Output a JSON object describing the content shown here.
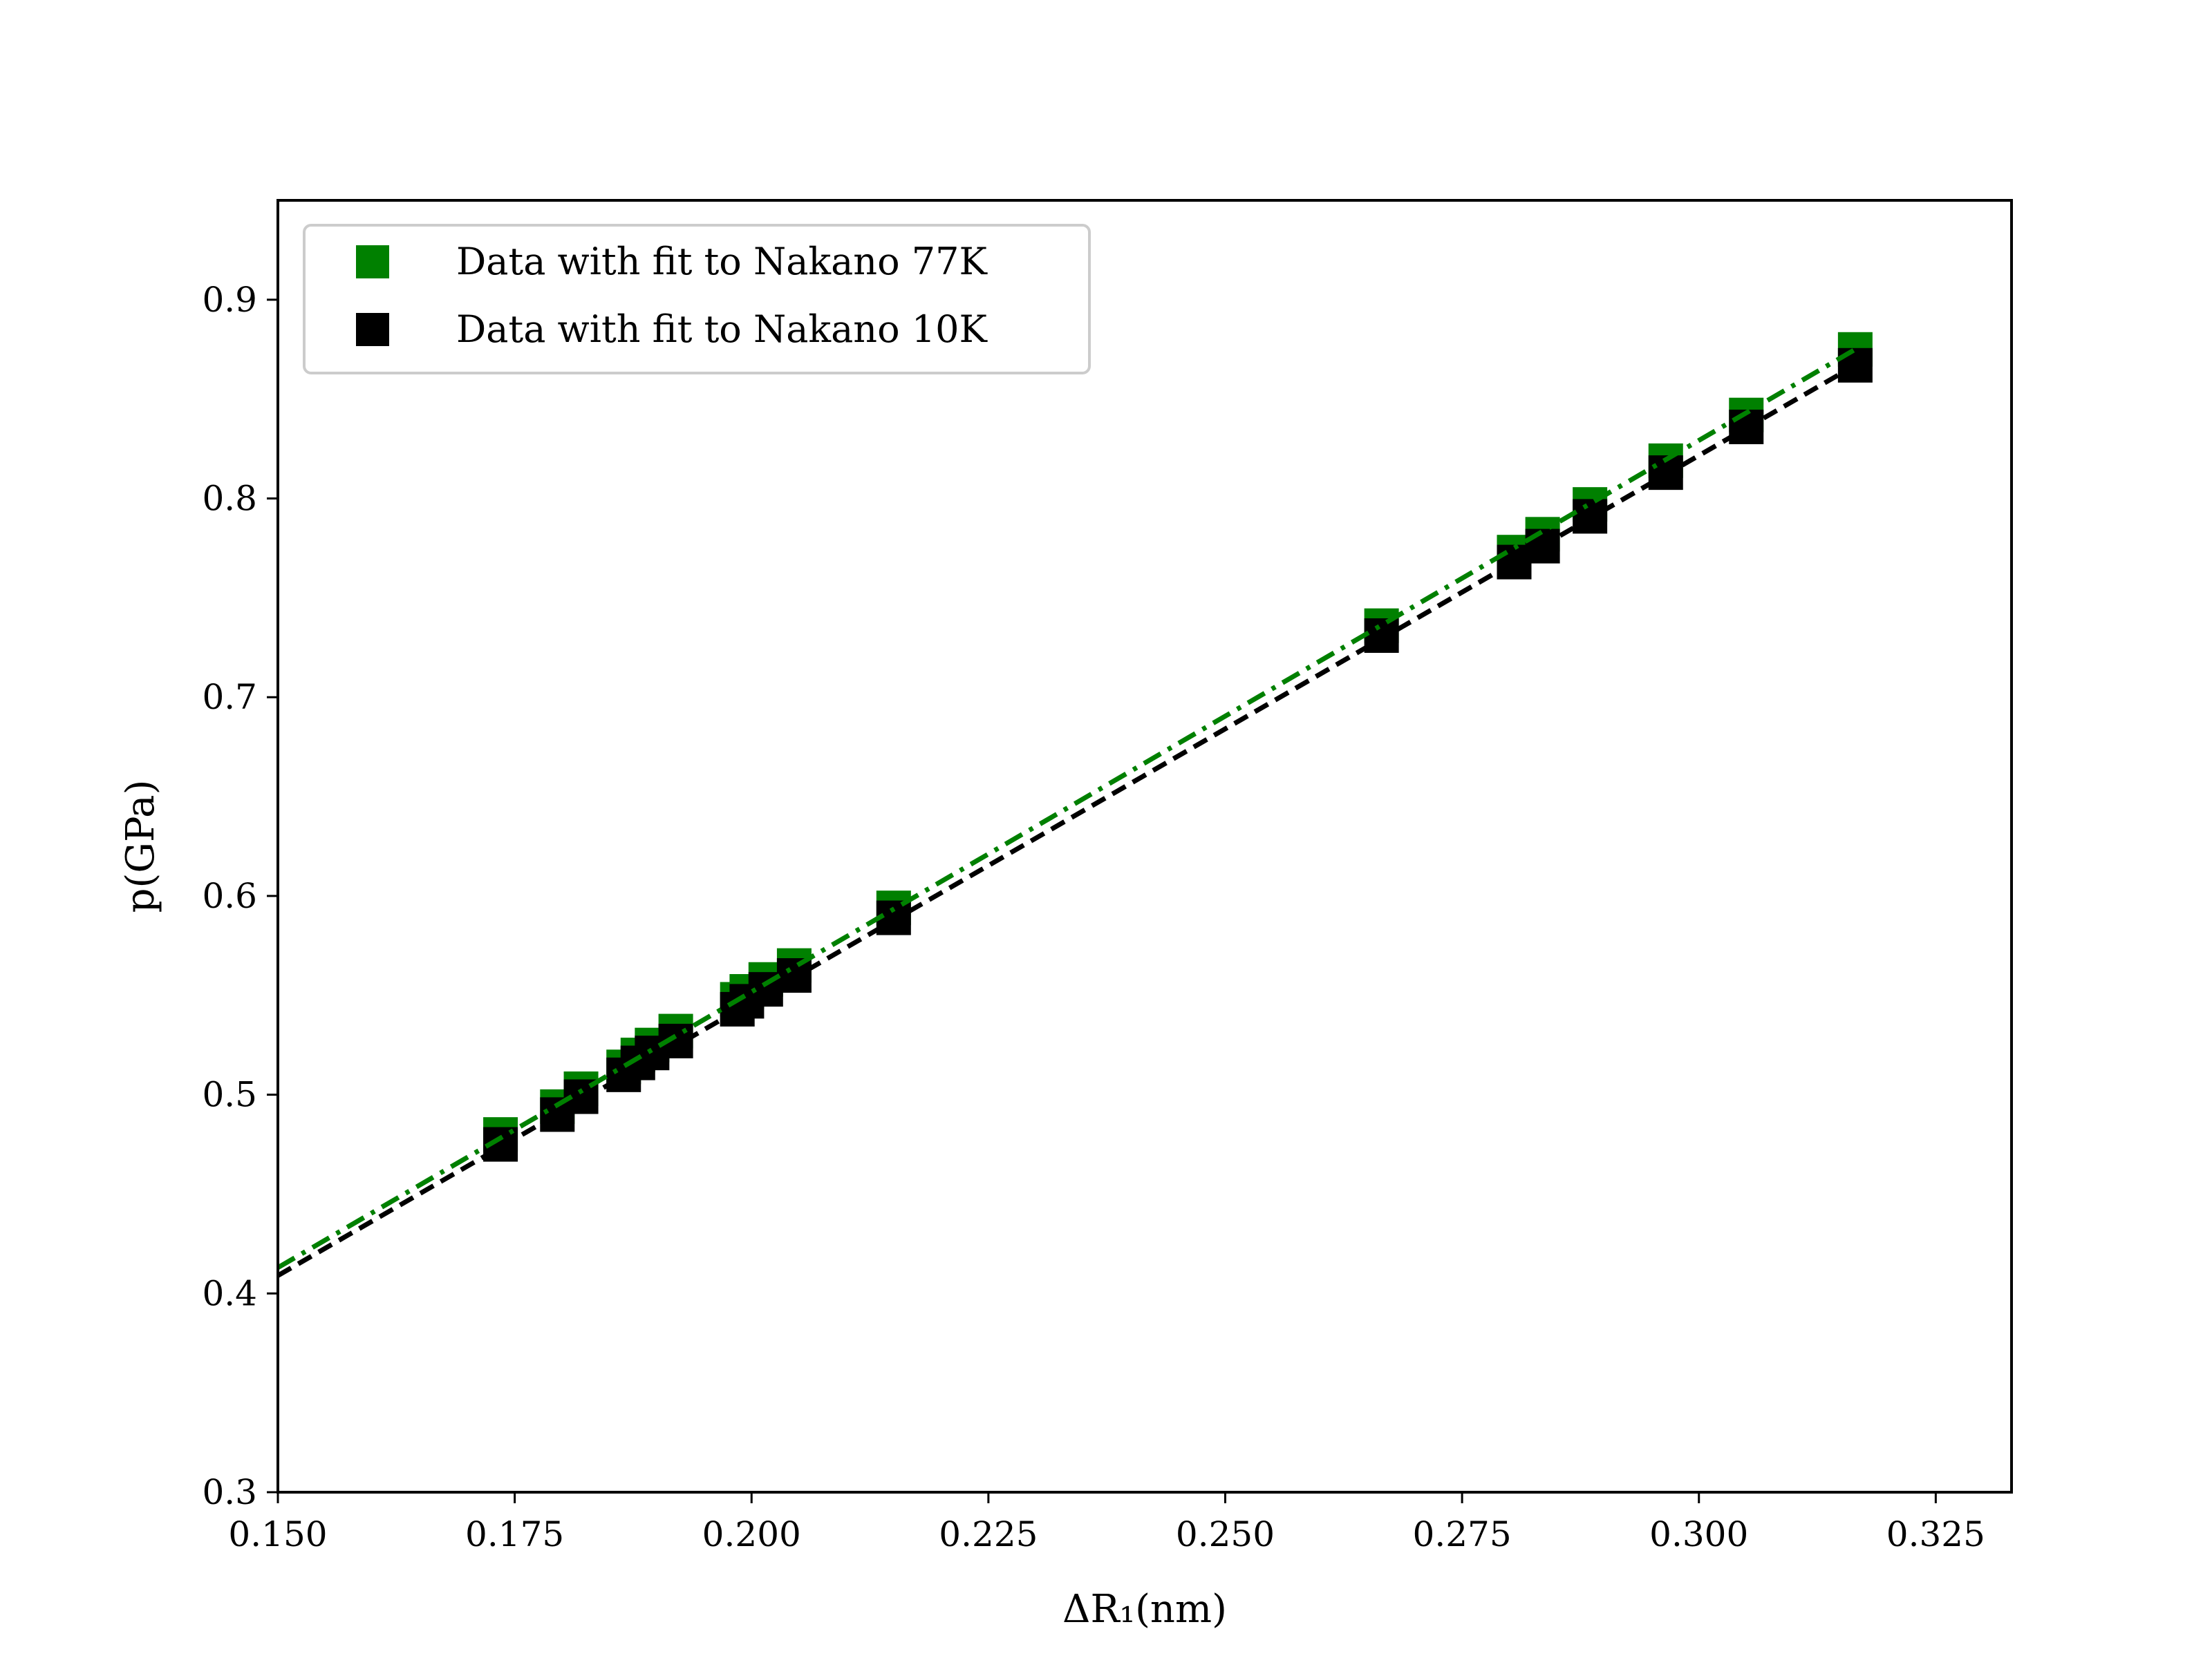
{
  "chart_data": {
    "type": "scatter",
    "xlabel": "ΔR₁(nm)",
    "ylabel": "p(GPa)",
    "xlim": [
      0.15,
      0.333
    ],
    "ylim": [
      0.3,
      0.95
    ],
    "xticks": [
      "0.150",
      "0.175",
      "0.200",
      "0.225",
      "0.250",
      "0.275",
      "0.300",
      "0.325"
    ],
    "yticks": [
      "0.3",
      "0.4",
      "0.5",
      "0.6",
      "0.7",
      "0.8",
      "0.9"
    ],
    "grid": false,
    "legend_position": "top-left",
    "series": [
      {
        "name": "Data with fit to Nakano 77K",
        "color": "#008000",
        "marker": "square",
        "x": [
          0.1735,
          0.1795,
          0.182,
          0.1865,
          0.188,
          0.1895,
          0.192,
          0.1985,
          0.1995,
          0.2015,
          0.2045,
          0.215,
          0.2665,
          0.2805,
          0.2835,
          0.2885,
          0.2965,
          0.305,
          0.3165
        ],
        "y": [
          0.48,
          0.494,
          0.503,
          0.514,
          0.52,
          0.525,
          0.532,
          0.548,
          0.552,
          0.558,
          0.565,
          0.594,
          0.736,
          0.773,
          0.782,
          0.797,
          0.819,
          0.842,
          0.875
        ],
        "fit": {
          "style": "dash-dot",
          "x": [
            0.15,
            0.3165
          ],
          "y": [
            0.413,
            0.875
          ]
        }
      },
      {
        "name": "Data with fit to Nakano 10K",
        "color": "#000000",
        "marker": "square",
        "x": [
          0.1735,
          0.1795,
          0.182,
          0.1865,
          0.188,
          0.1895,
          0.192,
          0.1985,
          0.1995,
          0.2015,
          0.2045,
          0.215,
          0.2665,
          0.2805,
          0.2835,
          0.2885,
          0.2965,
          0.305,
          0.3165
        ],
        "y": [
          0.475,
          0.49,
          0.499,
          0.51,
          0.516,
          0.521,
          0.527,
          0.543,
          0.547,
          0.553,
          0.56,
          0.589,
          0.731,
          0.768,
          0.776,
          0.791,
          0.813,
          0.836,
          0.867
        ],
        "fit": {
          "style": "dashed",
          "x": [
            0.15,
            0.3165
          ],
          "y": [
            0.409,
            0.867
          ]
        }
      }
    ]
  }
}
